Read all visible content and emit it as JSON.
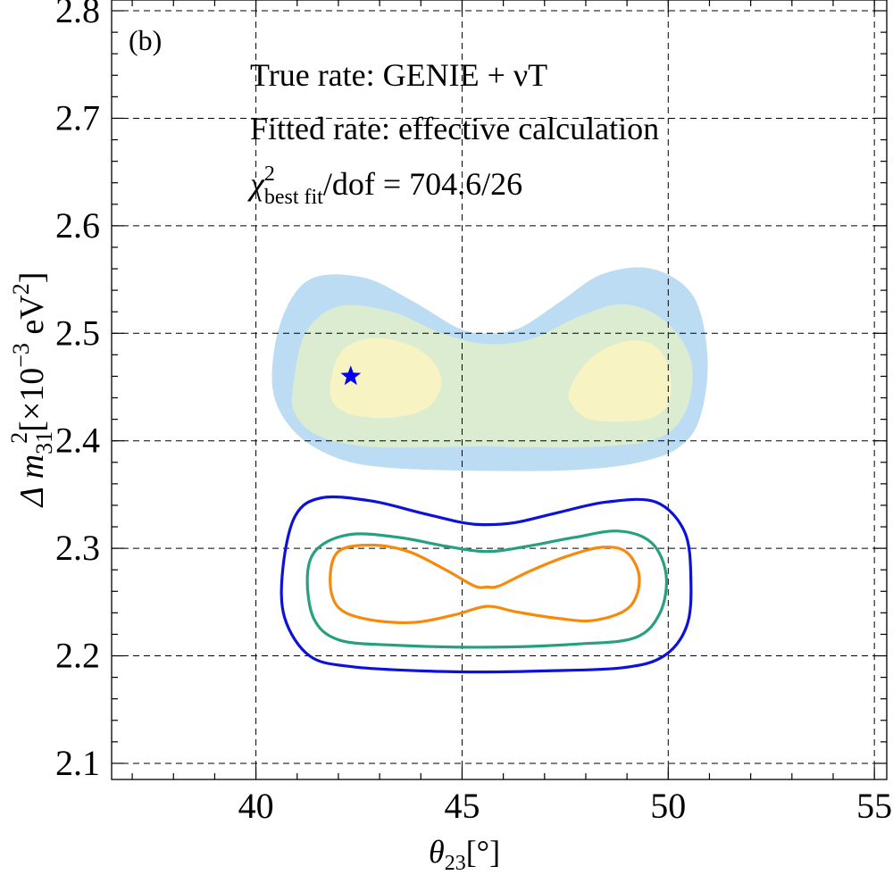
{
  "chart_data": {
    "type": "contour",
    "panel_label": "(b)",
    "annotations": [
      "True rate: GENIE + νT",
      "Fitted rate: effective calculation"
    ],
    "chi2_text": {
      "symbol": "χ",
      "sup": "2",
      "sub": "best fit",
      "rest": "/dof = 704.6/26"
    },
    "xlabel": {
      "main": "θ",
      "sub": "23",
      "unit": "[°]"
    },
    "ylabel": {
      "main": "Δ m",
      "sub": "31",
      "sup": "2",
      "unit": "[×10",
      "exp": "−3",
      "tail": " eV",
      "tail_sup": "2",
      "close": "]"
    },
    "xlim": [
      36.5,
      55.3
    ],
    "ylim": [
      2.085,
      2.81
    ],
    "x_ticks": [
      40,
      45,
      50,
      55
    ],
    "y_ticks": [
      2.1,
      2.2,
      2.3,
      2.4,
      2.5,
      2.6,
      2.7,
      2.8
    ],
    "x_tick_labels": [
      "40",
      "45",
      "50",
      "55"
    ],
    "y_tick_labels": [
      "2.1",
      "2.2",
      "2.3",
      "2.4",
      "2.5",
      "2.6",
      "2.7",
      "2.8"
    ],
    "x_minor_step": 1,
    "y_minor_step": 0.02,
    "grid": true,
    "best_fit": {
      "x": 42.3,
      "y": 2.46,
      "color": "#0000ee"
    },
    "filled_regions": [
      {
        "name": "3sigma",
        "color": "#bcdcf4",
        "points": [
          [
            40.4,
            2.45
          ],
          [
            40.6,
            2.51
          ],
          [
            41.3,
            2.55
          ],
          [
            42.6,
            2.552
          ],
          [
            43.8,
            2.53
          ],
          [
            44.9,
            2.505
          ],
          [
            45.6,
            2.5
          ],
          [
            46.4,
            2.505
          ],
          [
            47.4,
            2.53
          ],
          [
            48.4,
            2.555
          ],
          [
            49.6,
            2.56
          ],
          [
            50.6,
            2.535
          ],
          [
            50.95,
            2.48
          ],
          [
            50.8,
            2.425
          ],
          [
            50.3,
            2.395
          ],
          [
            49.3,
            2.38
          ],
          [
            47.8,
            2.373
          ],
          [
            45.6,
            2.372
          ],
          [
            43.2,
            2.375
          ],
          [
            41.9,
            2.385
          ],
          [
            40.9,
            2.41
          ]
        ]
      },
      {
        "name": "2sigma",
        "color": "#dcecd0",
        "points": [
          [
            40.9,
            2.45
          ],
          [
            41.2,
            2.5
          ],
          [
            42.0,
            2.525
          ],
          [
            43.3,
            2.52
          ],
          [
            44.5,
            2.5
          ],
          [
            45.6,
            2.49
          ],
          [
            46.7,
            2.495
          ],
          [
            47.8,
            2.515
          ],
          [
            48.9,
            2.527
          ],
          [
            49.9,
            2.512
          ],
          [
            50.55,
            2.475
          ],
          [
            50.45,
            2.43
          ],
          [
            49.8,
            2.403
          ],
          [
            48.5,
            2.395
          ],
          [
            46.5,
            2.394
          ],
          [
            45.6,
            2.395
          ],
          [
            44.2,
            2.394
          ],
          [
            42.6,
            2.395
          ],
          [
            41.5,
            2.405
          ],
          [
            40.95,
            2.425
          ]
        ]
      },
      {
        "name": "1sigma-left",
        "color": "#f8f3c2",
        "points": [
          [
            41.8,
            2.45
          ],
          [
            42.05,
            2.482
          ],
          [
            42.7,
            2.495
          ],
          [
            43.5,
            2.492
          ],
          [
            44.2,
            2.478
          ],
          [
            44.5,
            2.455
          ],
          [
            44.2,
            2.432
          ],
          [
            43.4,
            2.422
          ],
          [
            42.5,
            2.423
          ],
          [
            41.95,
            2.432
          ]
        ]
      },
      {
        "name": "1sigma-right",
        "color": "#f8f3c2",
        "points": [
          [
            47.6,
            2.447
          ],
          [
            48.1,
            2.476
          ],
          [
            48.9,
            2.492
          ],
          [
            49.6,
            2.49
          ],
          [
            50.0,
            2.47
          ],
          [
            50.05,
            2.44
          ],
          [
            49.7,
            2.423
          ],
          [
            49.0,
            2.418
          ],
          [
            48.1,
            2.42
          ],
          [
            47.7,
            2.432
          ]
        ]
      }
    ],
    "line_contours": [
      {
        "name": "outer",
        "color": "#0d12d8",
        "points": [
          [
            40.65,
            2.28
          ],
          [
            40.95,
            2.33
          ],
          [
            41.6,
            2.347
          ],
          [
            42.8,
            2.344
          ],
          [
            44.0,
            2.333
          ],
          [
            45.0,
            2.324
          ],
          [
            45.6,
            2.322
          ],
          [
            46.3,
            2.324
          ],
          [
            47.3,
            2.333
          ],
          [
            48.5,
            2.343
          ],
          [
            49.7,
            2.343
          ],
          [
            50.4,
            2.315
          ],
          [
            50.55,
            2.27
          ],
          [
            50.45,
            2.228
          ],
          [
            49.9,
            2.2
          ],
          [
            48.9,
            2.189
          ],
          [
            47.0,
            2.186
          ],
          [
            45.6,
            2.185
          ],
          [
            44.0,
            2.186
          ],
          [
            42.3,
            2.19
          ],
          [
            41.3,
            2.2
          ],
          [
            40.7,
            2.235
          ]
        ]
      },
      {
        "name": "middle",
        "color": "#26a081",
        "points": [
          [
            41.25,
            2.275
          ],
          [
            41.5,
            2.3
          ],
          [
            42.3,
            2.313
          ],
          [
            43.5,
            2.31
          ],
          [
            44.6,
            2.302
          ],
          [
            45.6,
            2.297
          ],
          [
            46.6,
            2.302
          ],
          [
            47.7,
            2.31
          ],
          [
            48.8,
            2.316
          ],
          [
            49.6,
            2.305
          ],
          [
            49.95,
            2.275
          ],
          [
            49.8,
            2.24
          ],
          [
            49.2,
            2.217
          ],
          [
            47.8,
            2.211
          ],
          [
            45.6,
            2.208
          ],
          [
            43.3,
            2.21
          ],
          [
            42.0,
            2.215
          ],
          [
            41.4,
            2.235
          ]
        ]
      },
      {
        "name": "inner",
        "color": "#f78a0c",
        "points": [
          [
            41.8,
            2.27
          ],
          [
            42.0,
            2.297
          ],
          [
            42.8,
            2.303
          ],
          [
            43.7,
            2.297
          ],
          [
            44.6,
            2.28
          ],
          [
            45.3,
            2.265
          ],
          [
            45.6,
            2.264
          ],
          [
            45.9,
            2.265
          ],
          [
            46.6,
            2.278
          ],
          [
            47.5,
            2.292
          ],
          [
            48.4,
            2.301
          ],
          [
            49.0,
            2.296
          ],
          [
            49.3,
            2.272
          ],
          [
            49.05,
            2.245
          ],
          [
            48.2,
            2.233
          ],
          [
            47.3,
            2.235
          ],
          [
            46.3,
            2.241
          ],
          [
            45.6,
            2.246
          ],
          [
            44.8,
            2.238
          ],
          [
            43.8,
            2.231
          ],
          [
            42.7,
            2.234
          ],
          [
            42.0,
            2.245
          ]
        ]
      }
    ]
  }
}
